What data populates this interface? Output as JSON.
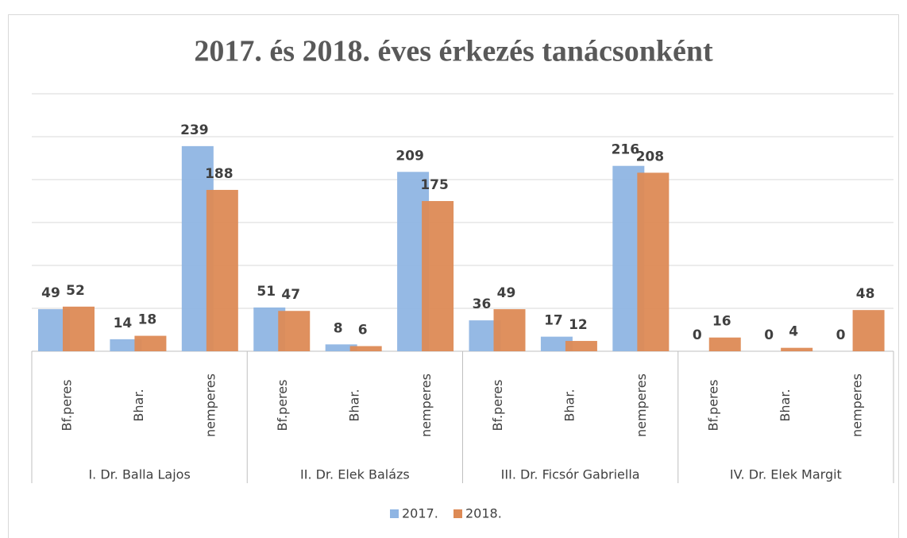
{
  "chart_data": {
    "type": "bar",
    "title": "2017. és 2018. éves érkezés tanácsonként",
    "groups": [
      {
        "name": "I. Dr. Balla Lajos",
        "categories": [
          "Bf.peres",
          "Bhar.",
          "nemperes"
        ]
      },
      {
        "name": "II. Dr. Elek Balázs",
        "categories": [
          "Bf.peres",
          "Bhar.",
          "nemperes"
        ]
      },
      {
        "name": "III. Dr. Ficsór Gabriella",
        "categories": [
          "Bf.peres",
          "Bhar.",
          "nemperes"
        ]
      },
      {
        "name": "IV. Dr. Elek Margit",
        "categories": [
          "Bf.peres",
          "Bhar.",
          "nemperes"
        ]
      }
    ],
    "series": [
      {
        "name": "2017.",
        "color": "#8fb5e3",
        "values": [
          49,
          14,
          239,
          51,
          8,
          209,
          36,
          17,
          216,
          0,
          0,
          0
        ]
      },
      {
        "name": "2018.",
        "color": "#dd8a55",
        "values": [
          52,
          18,
          188,
          47,
          6,
          175,
          49,
          12,
          208,
          16,
          4,
          48
        ]
      }
    ],
    "ylim": [
      0,
      300
    ],
    "yticks": [
      0,
      50,
      100,
      150,
      200,
      250,
      300
    ],
    "grid": true,
    "legend": "bottom"
  }
}
